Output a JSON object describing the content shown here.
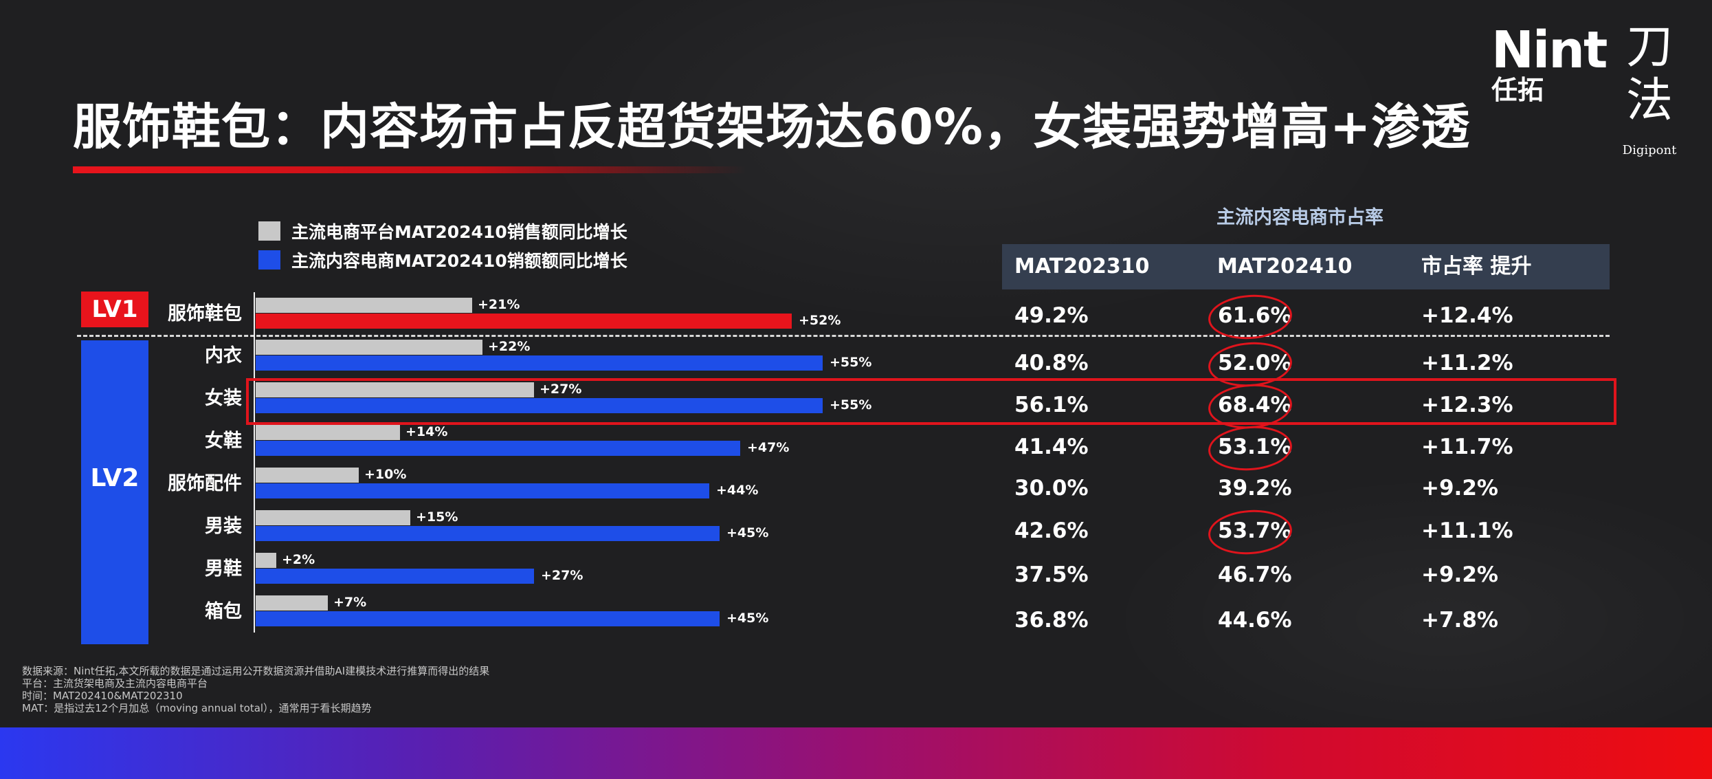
{
  "title": "服饰鞋包：内容场市占反超货架场达60%，女装强势增高+渗透",
  "logo": {
    "brand": "Nint",
    "brand_cn": "任拓",
    "mark": "刀法",
    "mark_en": "Digipont"
  },
  "legend": [
    {
      "label": "主流电商平台MAT202410销售额同比增长",
      "color": "#c8c8c8"
    },
    {
      "label": "主流内容电商MAT202410销额额同比增长",
      "color": "#1e4ee8"
    }
  ],
  "levels": {
    "lv1": "LV1",
    "lv2": "LV2"
  },
  "colors": {
    "grey_bar": "#c8c8c8",
    "blue_bar": "#1e4ee8",
    "red_bar": "#e8141c",
    "highlight": "#e0141c"
  },
  "chart_data": {
    "type": "bar",
    "orientation": "horizontal",
    "categories": [
      "服饰鞋包",
      "内衣",
      "女装",
      "女鞋",
      "服饰配件",
      "男装",
      "男鞋",
      "箱包"
    ],
    "series": [
      {
        "name": "主流电商平台MAT202410销售额同比增长",
        "values": [
          21,
          22,
          27,
          14,
          10,
          15,
          2,
          7
        ],
        "labels": [
          "+21%",
          "+22%",
          "+27%",
          "+14%",
          "+10%",
          "+15%",
          "+2%",
          "+7%"
        ]
      },
      {
        "name": "主流内容电商MAT202410销额额同比增长",
        "values": [
          52,
          55,
          55,
          47,
          44,
          45,
          27,
          45
        ],
        "labels": [
          "+52%",
          "+55%",
          "+55%",
          "+47%",
          "+44%",
          "+45%",
          "+27%",
          "+45%"
        ]
      }
    ],
    "unit": "%",
    "xlim": [
      0,
      60
    ]
  },
  "table": {
    "title": "主流内容电商市占率",
    "columns": [
      "MAT202310",
      "MAT202410",
      "市占率 提升"
    ],
    "rows": [
      [
        "49.2%",
        "61.6%",
        "+12.4%"
      ],
      [
        "40.8%",
        "52.0%",
        "+11.2%"
      ],
      [
        "56.1%",
        "68.4%",
        "+12.3%"
      ],
      [
        "41.4%",
        "53.1%",
        "+11.7%"
      ],
      [
        "30.0%",
        "39.2%",
        "+9.2%"
      ],
      [
        "42.6%",
        "53.7%",
        "+11.1%"
      ],
      [
        "37.5%",
        "46.7%",
        "+9.2%"
      ],
      [
        "36.8%",
        "44.6%",
        "+7.8%"
      ]
    ],
    "circled_rows": [
      0,
      1,
      2,
      3,
      5
    ],
    "highlighted_row": 2
  },
  "footnotes": [
    "数据来源：Nint任拓,本文所载的数据是通过运用公开数据资源并借助AI建模技术进行推算而得出的结果",
    "平台：主流货架电商及主流内容电商平台",
    "时间：MAT202410&MAT202310",
    "MAT：是指过去12个月加总（moving annual total），通常用于看长期趋势"
  ]
}
